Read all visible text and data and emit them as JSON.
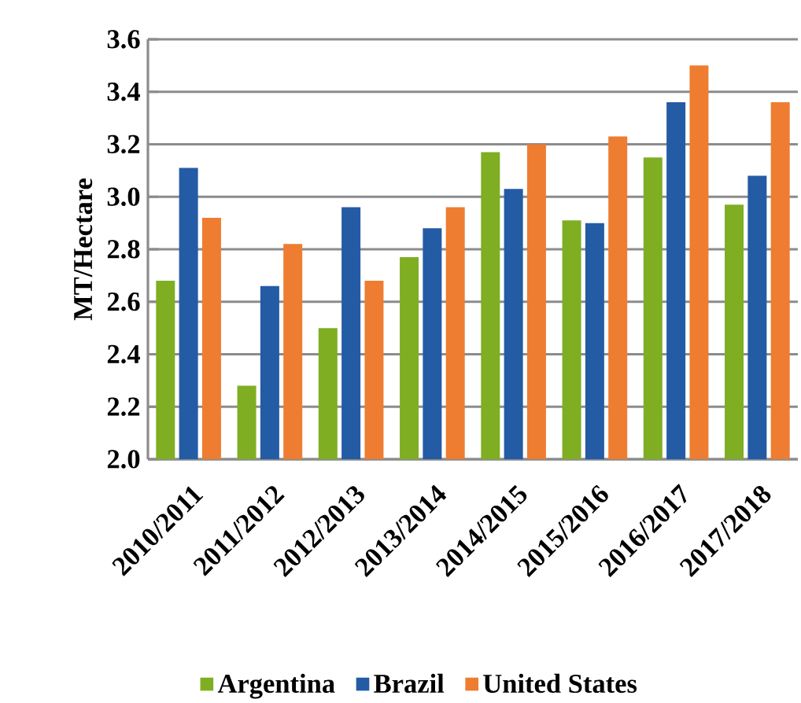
{
  "chart_data": {
    "type": "bar",
    "ylabel": "MT/Hectare",
    "categories": [
      "2010/2011",
      "2011/2012",
      "2012/2013",
      "2013/2014",
      "2014/2015",
      "2015/2016",
      "2016/2017",
      "2017/2018"
    ],
    "series": [
      {
        "name": "Argentina",
        "color": "#7fae23",
        "values": [
          2.68,
          2.28,
          2.5,
          2.77,
          3.17,
          2.91,
          3.15,
          2.97
        ]
      },
      {
        "name": "Brazil",
        "color": "#245ba5",
        "values": [
          3.11,
          2.66,
          2.96,
          2.88,
          3.03,
          2.9,
          3.36,
          3.08
        ]
      },
      {
        "name": "United States",
        "color": "#ee7d31",
        "values": [
          2.92,
          2.82,
          2.68,
          2.96,
          3.2,
          3.23,
          3.5,
          3.36
        ]
      }
    ],
    "ylim": [
      2.0,
      3.6
    ],
    "yticks": [
      {
        "value": 2.0,
        "label": "2.0"
      },
      {
        "value": 2.2,
        "label": "2.2"
      },
      {
        "value": 2.4,
        "label": "2.4"
      },
      {
        "value": 2.6,
        "label": "2.6"
      },
      {
        "value": 2.8,
        "label": "2.8"
      },
      {
        "value": 3.0,
        "label": "3.0"
      },
      {
        "value": 3.2,
        "label": "3.2"
      },
      {
        "value": 3.4,
        "label": "3.4"
      },
      {
        "value": 3.6,
        "label": "3.6"
      }
    ],
    "grid": "y",
    "legend": "bottom"
  }
}
